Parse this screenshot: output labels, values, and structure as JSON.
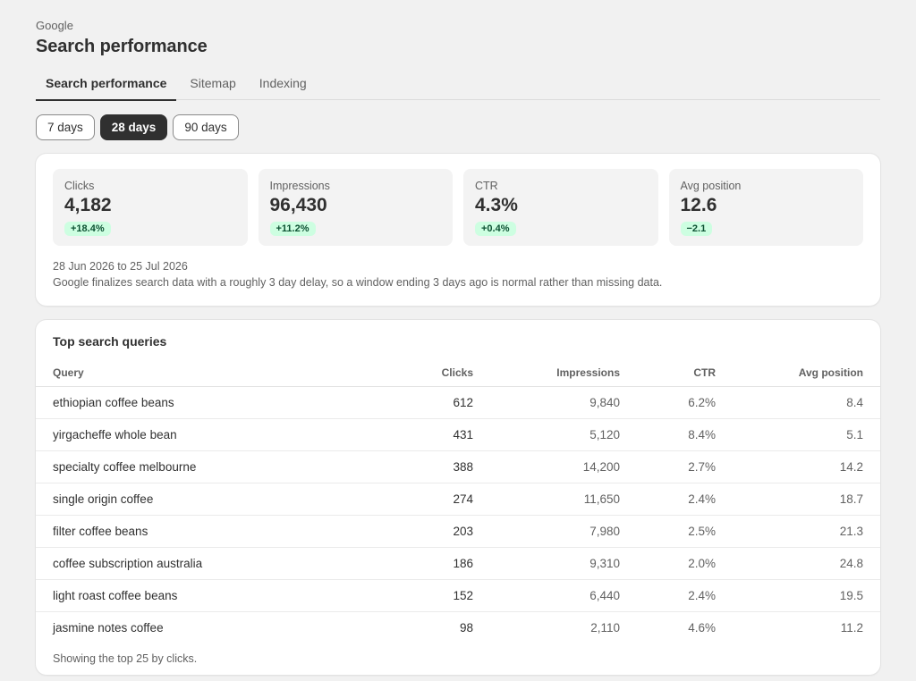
{
  "header": {
    "eyebrow": "Google",
    "title": "Search performance"
  },
  "tabs": [
    {
      "label": "Search performance",
      "active": true
    },
    {
      "label": "Sitemap",
      "active": false
    },
    {
      "label": "Indexing",
      "active": false
    }
  ],
  "ranges": [
    {
      "label": "7 days",
      "active": false
    },
    {
      "label": "28 days",
      "active": true
    },
    {
      "label": "90 days",
      "active": false
    }
  ],
  "metrics": [
    {
      "label": "Clicks",
      "value": "4,182",
      "delta": "+18.4%"
    },
    {
      "label": "Impressions",
      "value": "96,430",
      "delta": "+11.2%"
    },
    {
      "label": "CTR",
      "value": "4.3%",
      "delta": "+0.4%"
    },
    {
      "label": "Avg position",
      "value": "12.6",
      "delta": "−2.1"
    }
  ],
  "summary": {
    "date_range": "28 Jun 2026 to 25 Jul 2026",
    "note": "Google finalizes search data with a roughly 3 day delay, so a window ending 3 days ago is normal rather than missing data."
  },
  "queries": {
    "title": "Top search queries",
    "columns": [
      "Query",
      "Clicks",
      "Impressions",
      "CTR",
      "Avg position"
    ],
    "rows": [
      [
        "ethiopian coffee beans",
        "612",
        "9,840",
        "6.2%",
        "8.4"
      ],
      [
        "yirgacheffe whole bean",
        "431",
        "5,120",
        "8.4%",
        "5.1"
      ],
      [
        "specialty coffee melbourne",
        "388",
        "14,200",
        "2.7%",
        "14.2"
      ],
      [
        "single origin coffee",
        "274",
        "11,650",
        "2.4%",
        "18.7"
      ],
      [
        "filter coffee beans",
        "203",
        "7,980",
        "2.5%",
        "21.3"
      ],
      [
        "coffee subscription australia",
        "186",
        "9,310",
        "2.0%",
        "24.8"
      ],
      [
        "light roast coffee beans",
        "152",
        "6,440",
        "2.4%",
        "19.5"
      ],
      [
        "jasmine notes coffee",
        "98",
        "2,110",
        "4.6%",
        "11.2"
      ]
    ],
    "footer": "Showing the top 25 by clicks."
  },
  "colors": {
    "page_bg": "#f1f1f1",
    "accent_dark": "#303030",
    "positive_badge_bg": "#cdfee1",
    "positive_badge_text": "#0c5132"
  }
}
